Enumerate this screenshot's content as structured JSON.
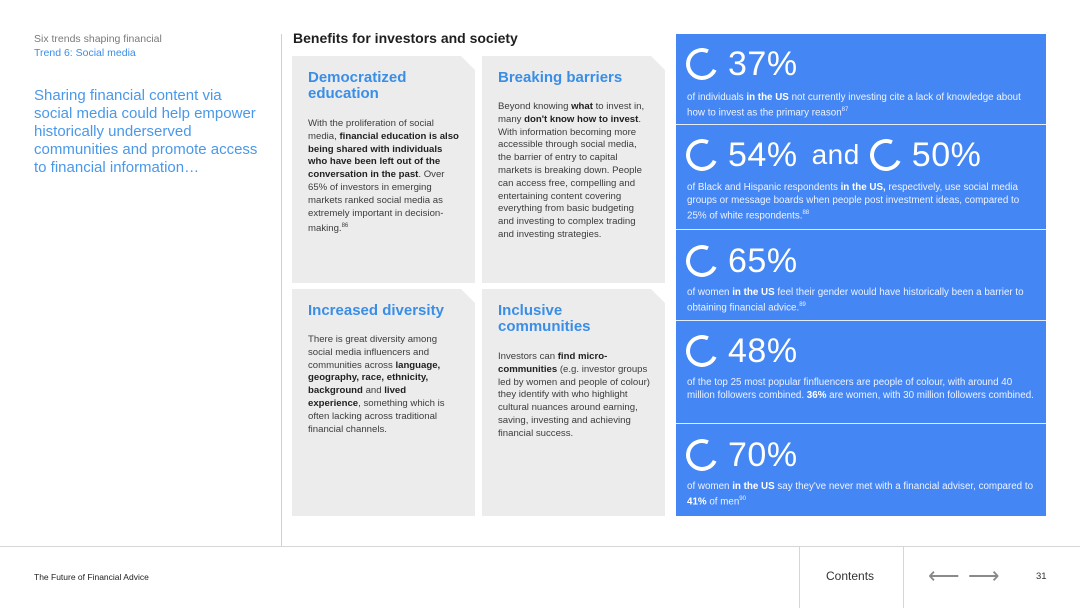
{
  "breadcrumb": {
    "line1": "Six trends shaping financial",
    "line2": "Trend 6: Social media"
  },
  "lead": "Sharing financial content via social media could help empower historically underserved communities and promote access to financial information…",
  "section_title": "Benefits for investors and society",
  "cards": {
    "democratized": {
      "title": "Democratized education",
      "body": [
        "With the proliferation of social media, ",
        {
          "b": "financial education is also being shared with individuals who have been left out of the conversation in the past"
        },
        ". Over 65% of investors in emerging markets ranked social media as extremely important in decision-making.",
        {
          "sup": "86"
        }
      ]
    },
    "breaking": {
      "title": "Breaking barriers",
      "body": [
        "Beyond knowing ",
        {
          "b": "what"
        },
        " to invest in, many ",
        {
          "b": "don't know how to invest"
        },
        ". With information becoming more accessible through social media, the barrier of entry to capital markets is breaking down. People can access free, compelling and entertaining content covering everything from basic budgeting and investing to complex trading and investing strategies."
      ]
    },
    "diversity": {
      "title": "Increased diversity",
      "body": [
        "There is great diversity among social media influencers and communities across ",
        {
          "b": "language, geography, race, ethnicity, background"
        },
        " and ",
        {
          "b": "lived experience"
        },
        ", something which is often lacking across traditional financial channels."
      ]
    },
    "inclusive": {
      "title": "Inclusive communities",
      "body": [
        "Investors can ",
        {
          "b": "find micro-communities"
        },
        " (e.g. investor groups led by women and people of colour) they identify with who highlight cultural nuances around earning, saving, investing and achieving financial success."
      ]
    }
  },
  "stats": [
    {
      "value": "37%",
      "desc": [
        "of individuals ",
        {
          "b": "in the US"
        },
        " not currently investing cite a lack of knowledge about how to invest as the primary reason",
        {
          "sup": "87"
        }
      ]
    },
    {
      "value": "54%",
      "and": "and",
      "value2": "50%",
      "desc": [
        "of Black and Hispanic respondents ",
        {
          "b": "in the US,"
        },
        " respectively, use social media groups or message boards when people post investment ideas, compared to 25% of white respondents.",
        {
          "sup": "88"
        }
      ]
    },
    {
      "value": "65%",
      "desc": [
        "of women ",
        {
          "b": "in the US"
        },
        " feel their gender would have historically been a barrier to obtaining financial advice.",
        {
          "sup": "89"
        }
      ]
    },
    {
      "value": "48%",
      "desc": [
        "of the top 25 most popular finfluencers are people of colour, with around 40 million followers combined. ",
        {
          "b": "36%"
        },
        " are women, with 30 million followers combined."
      ]
    },
    {
      "value": "70%",
      "desc": [
        "of women ",
        {
          "b": "in the US"
        },
        " say they've never met with a financial adviser, compared to ",
        {
          "b": "41%"
        },
        " of men",
        {
          "sup": "90"
        }
      ]
    }
  ],
  "footer": {
    "title": "The Future of Financial Advice",
    "contents_label": "Contents",
    "prev_arrow": "⟵",
    "next_arrow": "⟶",
    "page_number": "31"
  },
  "colors": {
    "accent": "#3a8ee6",
    "stats_panel": "#4486f4",
    "card_bg": "#ececec"
  }
}
